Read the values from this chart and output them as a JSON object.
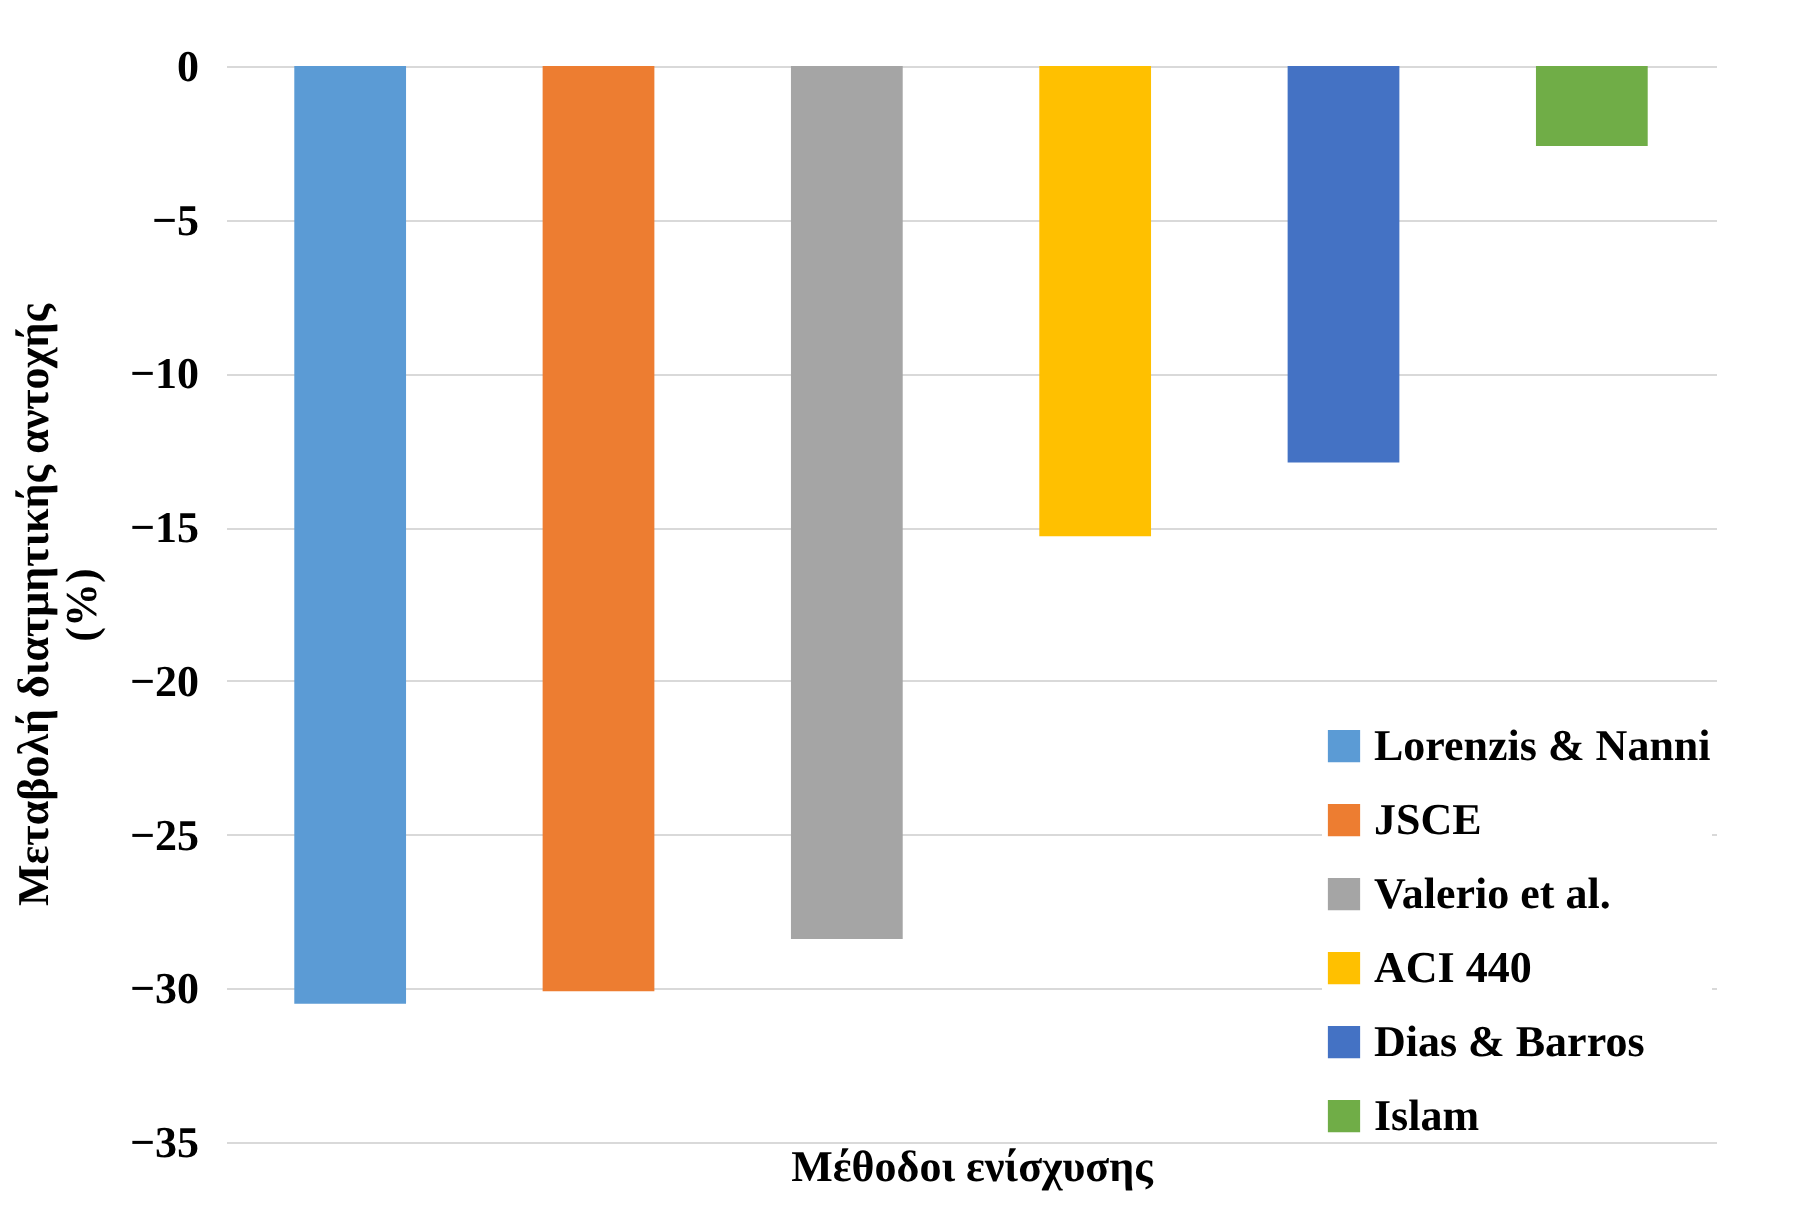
{
  "chart_data": {
    "type": "bar",
    "xlabel": "Μέθοδοι ενίσχυσης",
    "ylabel": "Μεταβολή διατμητικής αντοχής (%)",
    "categories": [
      null,
      null,
      null,
      null,
      null,
      null
    ],
    "series": [
      {
        "name": "Lorenzis & Nanni",
        "color": "#5b9bd5",
        "values": [
          -30.5,
          null,
          null,
          null,
          null,
          null
        ]
      },
      {
        "name": "JSCE",
        "color": "#ed7d31",
        "values": [
          null,
          -30.1,
          null,
          null,
          null,
          null
        ]
      },
      {
        "name": "Valerio et al.",
        "color": "#a5a5a5",
        "values": [
          null,
          null,
          -28.4,
          null,
          null,
          null
        ]
      },
      {
        "name": "ACI 440",
        "color": "#ffc000",
        "values": [
          null,
          null,
          null,
          -15.3,
          null,
          null
        ]
      },
      {
        "name": "Dias & Barros",
        "color": "#4472c4",
        "values": [
          null,
          null,
          null,
          null,
          -12.9,
          null
        ]
      },
      {
        "name": "Islam",
        "color": "#70ad47",
        "values": [
          null,
          null,
          null,
          null,
          null,
          -2.6
        ]
      }
    ],
    "ylim": [
      -35,
      0
    ],
    "yticks": [
      0,
      -5,
      -10,
      -15,
      -20,
      -25,
      -30,
      -35
    ],
    "grid": "y",
    "legend": "bottom right",
    "tick_labels": "y"
  }
}
